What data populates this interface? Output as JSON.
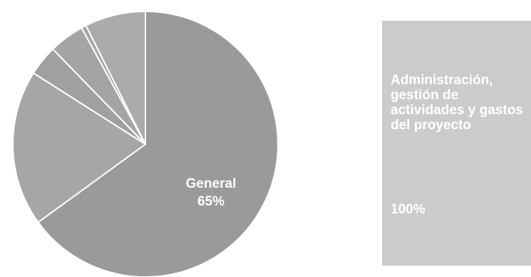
{
  "chart_data": [
    {
      "type": "pie",
      "title": "",
      "slices": [
        {
          "label": "General",
          "value": 65,
          "value_label": "65%",
          "color": "#9a9a9a",
          "labeled": true
        },
        {
          "label": "",
          "value": 19,
          "color": "#a6a6a6",
          "labeled": false
        },
        {
          "label": "",
          "value": 3.7,
          "color": "#a0a0a0",
          "labeled": false
        },
        {
          "label": "",
          "value": 4.3,
          "color": "#a4a4a4",
          "labeled": false
        },
        {
          "label": "",
          "value": 0.6,
          "color": "#a8a8a8",
          "labeled": false
        },
        {
          "label": "",
          "value": 7.4,
          "color": "#ababab",
          "labeled": false
        }
      ]
    },
    {
      "type": "bar",
      "categories": [
        "Administración, gestión de actividades y gastos del proyecto"
      ],
      "values": [
        100
      ],
      "value_label": "100%",
      "color": "#cbcbcb"
    }
  ]
}
